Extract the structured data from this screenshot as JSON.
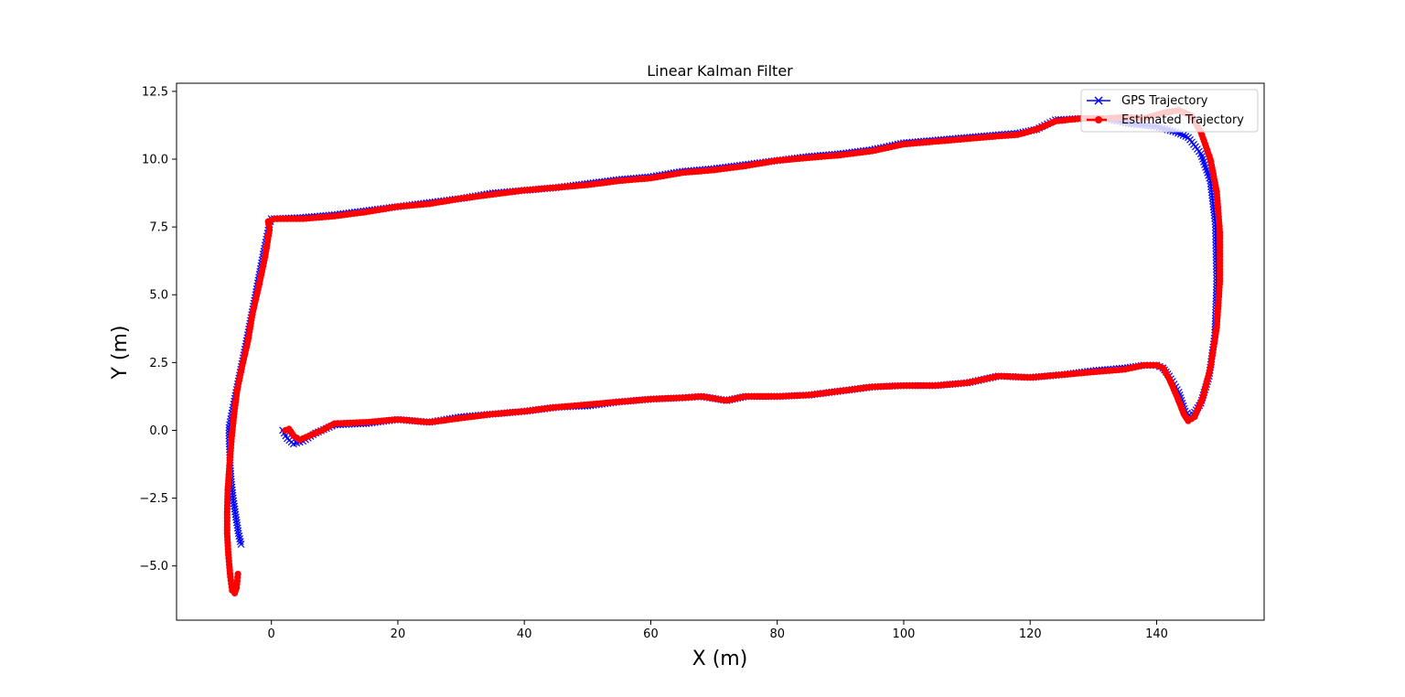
{
  "chart_data": {
    "type": "line",
    "title": "Linear Kalman Filter",
    "xlabel": "X (m)",
    "ylabel": "Y (m)",
    "xlim": [
      -15,
      157
    ],
    "ylim": [
      -7,
      12.8
    ],
    "xticks": [
      0,
      20,
      40,
      60,
      80,
      100,
      120,
      140
    ],
    "yticks": [
      12.5,
      10.0,
      7.5,
      5.0,
      2.5,
      0.0,
      -2.5,
      -5.0
    ],
    "ytick_labels": [
      "12.5",
      "10.0",
      "7.5",
      "5.0",
      "2.5",
      "0.0",
      "−2.5",
      "−5.0"
    ],
    "grid": false,
    "legend_position": "top-right",
    "series": [
      {
        "name": "GPS Trajectory",
        "color": "#0000ff",
        "marker": "x",
        "linestyle": "solid",
        "points": [
          [
            -4.8,
            -4.2
          ],
          [
            -5.2,
            -3.8
          ],
          [
            -5.6,
            -3.2
          ],
          [
            -6.0,
            -2.6
          ],
          [
            -6.3,
            -2.0
          ],
          [
            -6.5,
            -1.4
          ],
          [
            -6.6,
            -0.8
          ],
          [
            -6.7,
            -0.2
          ],
          [
            -6.7,
            0.1
          ],
          [
            -5.5,
            1.5
          ],
          [
            -4.0,
            3.2
          ],
          [
            -2.5,
            5.0
          ],
          [
            -1.2,
            6.6
          ],
          [
            -0.3,
            7.6
          ],
          [
            0.0,
            7.8
          ],
          [
            5,
            7.85
          ],
          [
            10,
            7.95
          ],
          [
            15,
            8.1
          ],
          [
            20,
            8.25
          ],
          [
            25,
            8.4
          ],
          [
            30,
            8.55
          ],
          [
            35,
            8.75
          ],
          [
            40,
            8.85
          ],
          [
            45,
            8.95
          ],
          [
            50,
            9.1
          ],
          [
            55,
            9.25
          ],
          [
            60,
            9.35
          ],
          [
            65,
            9.55
          ],
          [
            70,
            9.65
          ],
          [
            75,
            9.8
          ],
          [
            80,
            9.95
          ],
          [
            85,
            10.1
          ],
          [
            90,
            10.2
          ],
          [
            95,
            10.35
          ],
          [
            100,
            10.6
          ],
          [
            105,
            10.7
          ],
          [
            110,
            10.8
          ],
          [
            115,
            10.9
          ],
          [
            118,
            10.95
          ],
          [
            121,
            11.1
          ],
          [
            124,
            11.45
          ],
          [
            128,
            11.5
          ],
          [
            132,
            11.5
          ],
          [
            136,
            11.3
          ],
          [
            140,
            11.2
          ],
          [
            143,
            11.0
          ],
          [
            145,
            10.8
          ],
          [
            147,
            10.2
          ],
          [
            148.5,
            9.2
          ],
          [
            149.3,
            7.6
          ],
          [
            149.5,
            5.5
          ],
          [
            149.2,
            3.5
          ],
          [
            148.3,
            2.0
          ],
          [
            147,
            1.0
          ],
          [
            145.5,
            0.5
          ],
          [
            144.5,
            0.7
          ],
          [
            143.5,
            1.4
          ],
          [
            142,
            2.0
          ],
          [
            141,
            2.3
          ],
          [
            140,
            2.4
          ],
          [
            138,
            2.4
          ],
          [
            135,
            2.3
          ],
          [
            130,
            2.2
          ],
          [
            125,
            2.05
          ],
          [
            120,
            1.95
          ],
          [
            115,
            2.0
          ],
          [
            110,
            1.75
          ],
          [
            105,
            1.65
          ],
          [
            100,
            1.65
          ],
          [
            95,
            1.6
          ],
          [
            90,
            1.45
          ],
          [
            85,
            1.3
          ],
          [
            80,
            1.25
          ],
          [
            75,
            1.25
          ],
          [
            72,
            1.1
          ],
          [
            68,
            1.25
          ],
          [
            65,
            1.2
          ],
          [
            60,
            1.15
          ],
          [
            55,
            1.05
          ],
          [
            50,
            0.9
          ],
          [
            45,
            0.85
          ],
          [
            40,
            0.7
          ],
          [
            35,
            0.6
          ],
          [
            30,
            0.5
          ],
          [
            25,
            0.3
          ],
          [
            20,
            0.4
          ],
          [
            15,
            0.25
          ],
          [
            10,
            0.2
          ],
          [
            7,
            -0.1
          ],
          [
            5,
            -0.4
          ],
          [
            3.5,
            -0.5
          ],
          [
            2.5,
            -0.3
          ],
          [
            1.8,
            0.0
          ]
        ]
      },
      {
        "name": "Estimated Trajectory",
        "color": "#ff0000",
        "marker": "o",
        "linestyle": "dashed",
        "points": [
          [
            -5.3,
            -5.3
          ],
          [
            -5.5,
            -5.8
          ],
          [
            -5.8,
            -6.0
          ],
          [
            -6.2,
            -5.9
          ],
          [
            -6.5,
            -5.4
          ],
          [
            -6.8,
            -4.6
          ],
          [
            -7.0,
            -3.8
          ],
          [
            -7.0,
            -3.0
          ],
          [
            -6.9,
            -2.2
          ],
          [
            -6.6,
            -1.2
          ],
          [
            -6.3,
            -0.3
          ],
          [
            -5.9,
            0.6
          ],
          [
            -5.4,
            1.5
          ],
          [
            -4.6,
            2.4
          ],
          [
            -3.7,
            3.3
          ],
          [
            -3.0,
            4.3
          ],
          [
            -2.0,
            5.3
          ],
          [
            -1.0,
            6.4
          ],
          [
            -0.3,
            7.4
          ],
          [
            -0.5,
            7.7
          ],
          [
            0.5,
            7.8
          ],
          [
            5,
            7.8
          ],
          [
            10,
            7.9
          ],
          [
            15,
            8.05
          ],
          [
            20,
            8.25
          ],
          [
            25,
            8.35
          ],
          [
            30,
            8.55
          ],
          [
            35,
            8.7
          ],
          [
            40,
            8.85
          ],
          [
            45,
            8.95
          ],
          [
            50,
            9.05
          ],
          [
            55,
            9.2
          ],
          [
            60,
            9.3
          ],
          [
            65,
            9.5
          ],
          [
            70,
            9.6
          ],
          [
            75,
            9.75
          ],
          [
            80,
            9.95
          ],
          [
            85,
            10.05
          ],
          [
            90,
            10.15
          ],
          [
            95,
            10.3
          ],
          [
            100,
            10.55
          ],
          [
            105,
            10.65
          ],
          [
            110,
            10.75
          ],
          [
            115,
            10.85
          ],
          [
            118,
            10.9
          ],
          [
            121,
            11.1
          ],
          [
            124,
            11.4
          ],
          [
            128,
            11.5
          ],
          [
            132,
            11.5
          ],
          [
            135,
            11.55
          ],
          [
            138,
            11.5
          ],
          [
            141,
            11.7
          ],
          [
            143.5,
            11.8
          ],
          [
            145.5,
            11.6
          ],
          [
            147,
            11.0
          ],
          [
            148.5,
            10.0
          ],
          [
            149.5,
            8.8
          ],
          [
            150,
            7.3
          ],
          [
            150,
            5.5
          ],
          [
            149.5,
            3.8
          ],
          [
            148.5,
            2.3
          ],
          [
            147.3,
            1.2
          ],
          [
            146,
            0.5
          ],
          [
            145,
            0.35
          ],
          [
            144.3,
            0.6
          ],
          [
            143.3,
            1.2
          ],
          [
            142,
            1.9
          ],
          [
            141,
            2.3
          ],
          [
            140,
            2.4
          ],
          [
            138,
            2.4
          ],
          [
            135,
            2.25
          ],
          [
            130,
            2.15
          ],
          [
            125,
            2.05
          ],
          [
            120,
            1.95
          ],
          [
            115,
            2.0
          ],
          [
            110,
            1.75
          ],
          [
            105,
            1.65
          ],
          [
            100,
            1.65
          ],
          [
            95,
            1.6
          ],
          [
            90,
            1.45
          ],
          [
            85,
            1.3
          ],
          [
            80,
            1.25
          ],
          [
            75,
            1.25
          ],
          [
            72,
            1.1
          ],
          [
            68,
            1.25
          ],
          [
            65,
            1.2
          ],
          [
            60,
            1.15
          ],
          [
            55,
            1.05
          ],
          [
            50,
            0.95
          ],
          [
            45,
            0.85
          ],
          [
            40,
            0.7
          ],
          [
            35,
            0.6
          ],
          [
            30,
            0.45
          ],
          [
            25,
            0.3
          ],
          [
            20,
            0.4
          ],
          [
            15,
            0.3
          ],
          [
            10,
            0.25
          ],
          [
            8,
            0.0
          ],
          [
            6,
            -0.2
          ],
          [
            4.5,
            -0.35
          ],
          [
            3.5,
            -0.2
          ],
          [
            2.8,
            0.05
          ],
          [
            2.2,
            0.0
          ]
        ]
      }
    ]
  }
}
